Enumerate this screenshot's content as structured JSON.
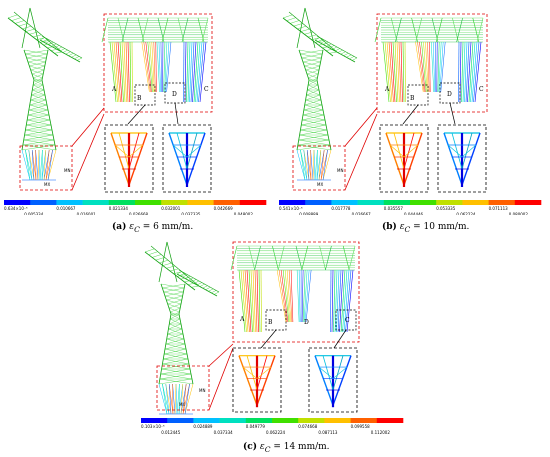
{
  "colors": {
    "scale": [
      "#0000ff",
      "#0060ff",
      "#00c0ff",
      "#00e0c0",
      "#00e060",
      "#40e000",
      "#c0e000",
      "#ffc000",
      "#ff6000",
      "#ff0000"
    ],
    "frame": "#e00000",
    "detail_frame": "#000000"
  },
  "panels": [
    {
      "id": "a",
      "caption_label": "(a)",
      "caption_text": "ε",
      "caption_sub": "C",
      "caption_value": " = 6 mm/m.",
      "labels": {
        "A": "A",
        "B": "B",
        "C": "C",
        "D": "D",
        "MX": "MX",
        "MN": "MN"
      },
      "ticks_top": [
        "0.634×10⁻⁵",
        "0.010667",
        "0.021334",
        "0.032001",
        "0.042669"
      ],
      "ticks_bottom": [
        "0.005334",
        "0.016001",
        "0.026668",
        "0.037335",
        "0.048002"
      ]
    },
    {
      "id": "b",
      "caption_label": "(b)",
      "caption_text": "ε",
      "caption_sub": "C",
      "caption_value": " = 10 mm/m.",
      "labels": {
        "A": "A",
        "B": "B",
        "C": "C",
        "D": "D",
        "MX": "MX",
        "MN": "MN"
      },
      "ticks_top": [
        "0.541×10⁻⁵",
        "0.017778",
        "0.035557",
        "0.053335",
        "0.071113"
      ],
      "ticks_bottom": [
        "0.008889",
        "0.026667",
        "0.044446",
        "0.062224",
        "0.080002"
      ]
    },
    {
      "id": "c",
      "caption_label": "(c)",
      "caption_text": "ε",
      "caption_sub": "C",
      "caption_value": " = 14 mm/m.",
      "labels": {
        "A": "A",
        "B": "B",
        "C": "C",
        "D": "D",
        "MX": "MX",
        "MN": "MN"
      },
      "ticks_top": [
        "0.103×10⁻⁵",
        "0.024889",
        "0.049779",
        "0.074668",
        "0.099558"
      ],
      "ticks_bottom": [
        "0.012445",
        "0.037334",
        "0.062224",
        "0.087113",
        "0.112002"
      ]
    }
  ]
}
